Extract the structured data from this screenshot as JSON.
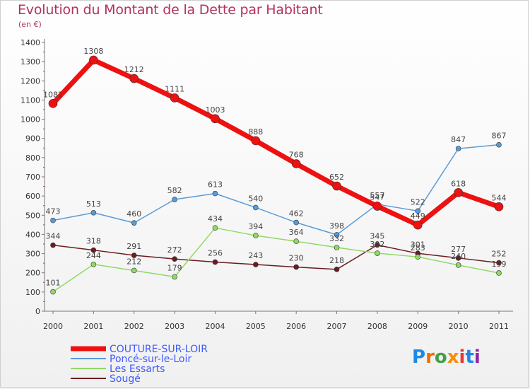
{
  "title": "Evolution du Montant de la Dette par Habitant",
  "subtitle": "(en €)",
  "logo": {
    "letters": [
      "P",
      "r",
      "o",
      "x",
      "i",
      "t",
      "i"
    ],
    "colors": [
      "#1e88e5",
      "#ef6c00",
      "#43a047",
      "#fb8c00",
      "#e53935",
      "#1e88e5",
      "#8e24aa"
    ]
  },
  "chart_data": {
    "type": "line",
    "x": [
      "2000",
      "2001",
      "2002",
      "2003",
      "2004",
      "2005",
      "2006",
      "2007",
      "2008",
      "2009",
      "2010",
      "2011"
    ],
    "ylim": [
      0,
      1400
    ],
    "yticks": [
      0,
      100,
      200,
      300,
      400,
      500,
      600,
      700,
      800,
      900,
      1000,
      1100,
      1200,
      1300,
      1400
    ],
    "grid": false,
    "legend_position": "bottom-left",
    "series": [
      {
        "name": "Sougé",
        "color": "#6b1c20",
        "width": 1.5,
        "radius": 3.5,
        "values": [
          344,
          318,
          291,
          272,
          256,
          243,
          230,
          218,
          345,
          301,
          277,
          252
        ]
      },
      {
        "name": "Les Essarts",
        "color": "#90d966",
        "width": 1.5,
        "radius": 3.5,
        "values": [
          101,
          244,
          212,
          179,
          434,
          394,
          364,
          332,
          302,
          283,
          240,
          199
        ]
      },
      {
        "name": "Poncé-sur-le-Loir",
        "color": "#5b9bd5",
        "width": 1.5,
        "radius": 3.5,
        "values": [
          473,
          513,
          460,
          582,
          613,
          540,
          462,
          398,
          557,
          522,
          847,
          867
        ]
      },
      {
        "name": "COUTURE-SUR-LOIR",
        "color": "#ee1111",
        "width": 7,
        "radius": 6,
        "values": [
          1082,
          1308,
          1212,
          1111,
          1003,
          888,
          768,
          652,
          547,
          449,
          618,
          544
        ]
      }
    ],
    "legend_order": [
      "COUTURE-SUR-LOIR",
      "Poncé-sur-le-Loir",
      "Les Essarts",
      "Sougé"
    ],
    "legend_colors": {
      "COUTURE-SUR-LOIR": "#3d5afe",
      "Poncé-sur-le-Loir": "#3d5afe",
      "Les Essarts": "#3d5afe",
      "Sougé": "#3d5afe"
    }
  }
}
